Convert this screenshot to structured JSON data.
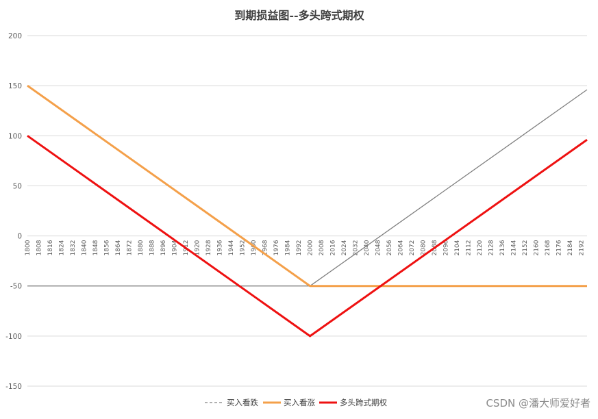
{
  "chart_data": {
    "type": "line",
    "title": "到期损益图--多头跨式期权",
    "xlabel": "",
    "ylabel": "",
    "x_range": [
      1800,
      2196
    ],
    "x_step": 4,
    "x_tick_labels": [
      "1800",
      "1808",
      "1816",
      "1824",
      "1832",
      "1840",
      "1848",
      "1856",
      "1864",
      "1872",
      "1880",
      "1888",
      "1896",
      "1904",
      "1912",
      "1920",
      "1928",
      "1936",
      "1944",
      "1952",
      "1960",
      "1968",
      "1976",
      "1984",
      "1992",
      "2000",
      "2008",
      "2016",
      "2024",
      "2032",
      "2040",
      "2048",
      "2056",
      "2064",
      "2072",
      "2080",
      "2088",
      "2096",
      "2104",
      "2112",
      "2120",
      "2128",
      "2136",
      "2144",
      "2152",
      "2160",
      "2168",
      "2176",
      "2184",
      "2192"
    ],
    "ylim": [
      -150,
      200
    ],
    "y_ticks": [
      200,
      150,
      100,
      50,
      0,
      -50,
      -100,
      -150
    ],
    "grid": true,
    "legend_position": "bottom",
    "series": [
      {
        "name": "买入看跌",
        "color": "#808080",
        "style": "thin",
        "x": [
          1800,
          2000,
          2196
        ],
        "y": [
          -50,
          -50,
          146
        ]
      },
      {
        "name": "买入看涨",
        "color": "#F4A04A",
        "style": "medium",
        "x": [
          1800,
          2000,
          2196
        ],
        "y": [
          150,
          -50,
          -50
        ]
      },
      {
        "name": "多头跨式期权",
        "color": "#EE1111",
        "style": "thick",
        "x": [
          1800,
          2000,
          2196
        ],
        "y": [
          100,
          -100,
          96
        ]
      }
    ]
  },
  "watermark": "CSDN @潘大师爱好者"
}
